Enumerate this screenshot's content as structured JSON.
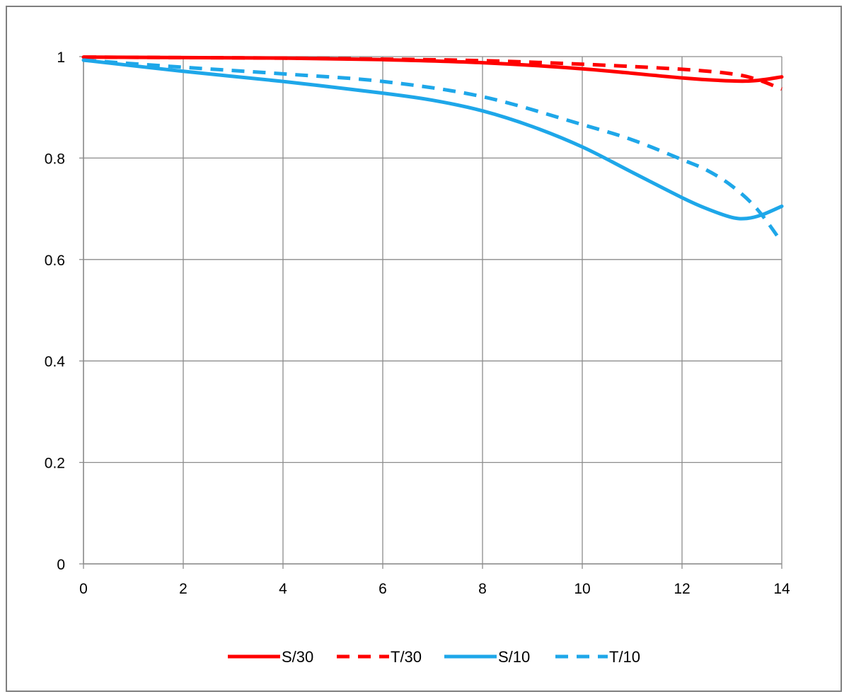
{
  "chart_data": {
    "type": "line",
    "title": "",
    "xlabel": "",
    "ylabel": "",
    "xlim": [
      0,
      14
    ],
    "ylim": [
      0,
      1
    ],
    "x_ticks": [
      "0",
      "2",
      "4",
      "6",
      "8",
      "10",
      "12",
      "14"
    ],
    "y_ticks": [
      "0",
      "0.2",
      "0.4",
      "0.6",
      "0.8",
      "1"
    ],
    "grid": true,
    "legend_position": "bottom",
    "series": [
      {
        "name": "S/30",
        "color": "#ff0000",
        "dash": "solid",
        "points": [
          [
            0,
            0.999
          ],
          [
            2,
            0.998
          ],
          [
            4,
            0.997
          ],
          [
            6,
            0.994
          ],
          [
            8,
            0.988
          ],
          [
            10,
            0.976
          ],
          [
            12,
            0.958
          ],
          [
            13,
            0.952
          ],
          [
            13.5,
            0.953
          ],
          [
            14,
            0.96
          ]
        ]
      },
      {
        "name": "T/30",
        "color": "#ff0000",
        "dash": "dashed",
        "points": [
          [
            0,
            0.999
          ],
          [
            2,
            0.998
          ],
          [
            4,
            0.997
          ],
          [
            6,
            0.995
          ],
          [
            8,
            0.992
          ],
          [
            10,
            0.985
          ],
          [
            12,
            0.975
          ],
          [
            13,
            0.966
          ],
          [
            13.5,
            0.955
          ],
          [
            14,
            0.936
          ]
        ]
      },
      {
        "name": "S/10",
        "color": "#1ea7e9",
        "dash": "solid",
        "points": [
          [
            0,
            0.993
          ],
          [
            2,
            0.971
          ],
          [
            4,
            0.951
          ],
          [
            6,
            0.928
          ],
          [
            7,
            0.914
          ],
          [
            8,
            0.893
          ],
          [
            9,
            0.862
          ],
          [
            10,
            0.822
          ],
          [
            11,
            0.772
          ],
          [
            12,
            0.722
          ],
          [
            12.5,
            0.7
          ],
          [
            13,
            0.683
          ],
          [
            13.3,
            0.681
          ],
          [
            13.6,
            0.688
          ],
          [
            14,
            0.705
          ]
        ]
      },
      {
        "name": "T/10",
        "color": "#1ea7e9",
        "dash": "dashed",
        "points": [
          [
            0,
            0.993
          ],
          [
            2,
            0.979
          ],
          [
            4,
            0.966
          ],
          [
            6,
            0.951
          ],
          [
            8,
            0.921
          ],
          [
            10,
            0.866
          ],
          [
            11,
            0.836
          ],
          [
            12,
            0.797
          ],
          [
            12.5,
            0.776
          ],
          [
            13,
            0.745
          ],
          [
            13.5,
            0.7
          ],
          [
            14,
            0.634
          ]
        ]
      }
    ]
  }
}
